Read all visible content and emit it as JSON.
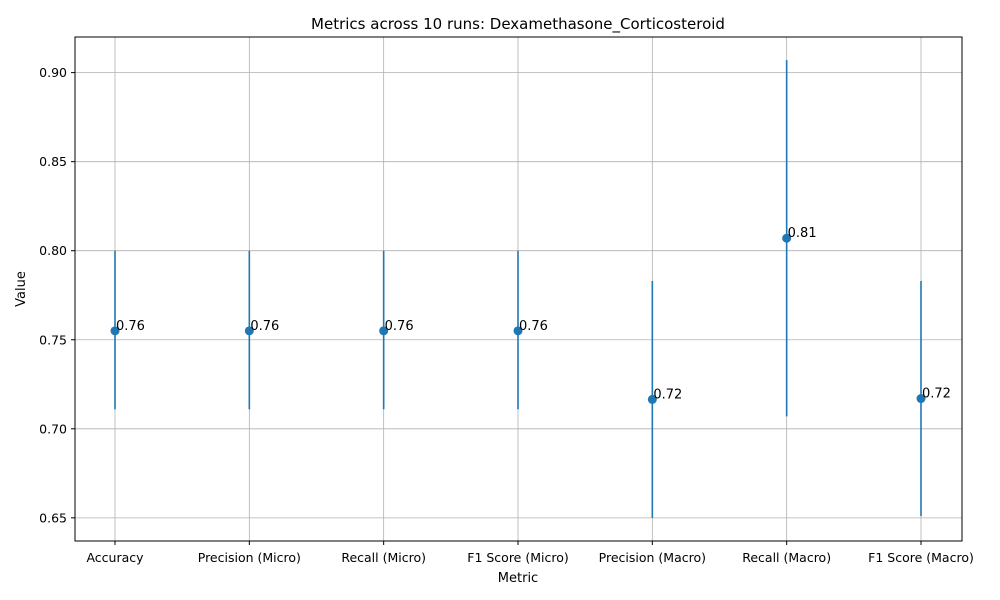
{
  "chart_data": {
    "type": "scatter",
    "title": "Metrics across 10 runs: Dexamethasone_Corticosteroid",
    "xlabel": "Metric",
    "ylabel": "Value",
    "categories": [
      "Accuracy",
      "Precision (Micro)",
      "Recall (Micro)",
      "F1 Score (Micro)",
      "Precision (Macro)",
      "Recall (Macro)",
      "F1 Score (Macro)"
    ],
    "values": [
      0.755,
      0.755,
      0.755,
      0.755,
      0.7165,
      0.807,
      0.717
    ],
    "error_low": [
      0.711,
      0.711,
      0.711,
      0.711,
      0.65,
      0.707,
      0.651
    ],
    "error_high": [
      0.8,
      0.8,
      0.8,
      0.8,
      0.783,
      0.907,
      0.783
    ],
    "data_labels": [
      "0.76",
      "0.76",
      "0.76",
      "0.76",
      "0.72",
      "0.81",
      "0.72"
    ],
    "ylim": [
      0.637,
      0.92
    ],
    "yticks": [
      0.65,
      0.7,
      0.75,
      0.8,
      0.85,
      0.9
    ],
    "ytick_labels": [
      "0.65",
      "0.70",
      "0.75",
      "0.80",
      "0.85",
      "0.90"
    ],
    "grid": true,
    "color": "#1f77b4"
  }
}
